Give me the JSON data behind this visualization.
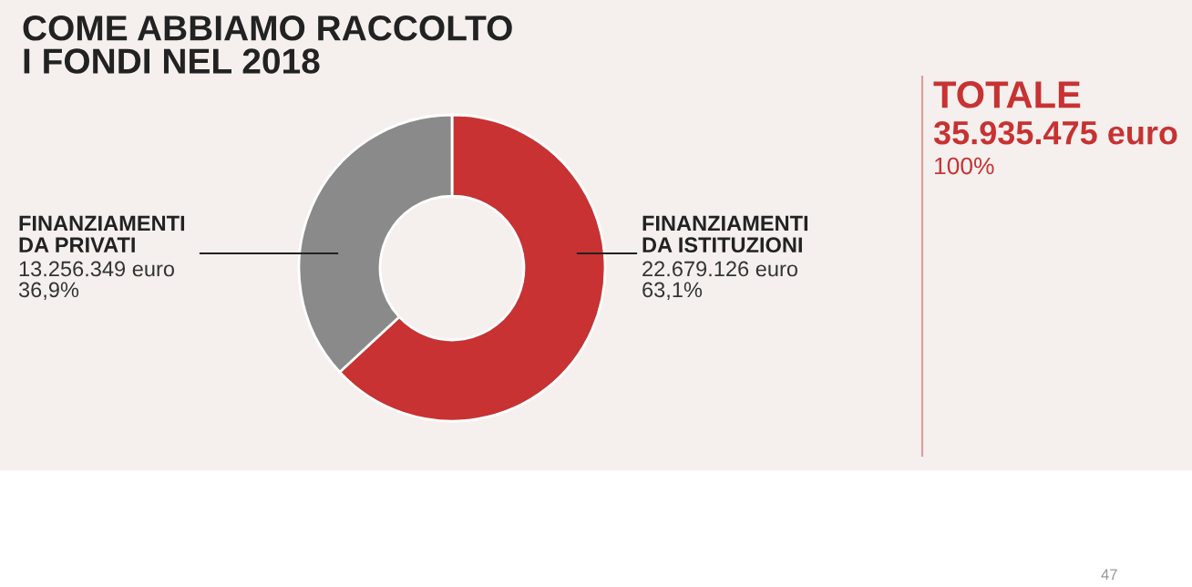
{
  "chart_data": {
    "type": "donut",
    "title": "COME ABBIAMO RACCOLTO\nI FONDI NEL 2018",
    "categories": [
      "FINANZIAMENTI\nDA ISTITUZIONI",
      "FINANZIAMENTI\nDA PRIVATI"
    ],
    "values": [
      22679126,
      13256349
    ],
    "colors": [
      "#c83232",
      "#8a8a8a"
    ],
    "value_labels": [
      "22.679.126 euro\n63,1%",
      "13.256.349 euro\n36,9%"
    ],
    "annotations": [
      "TOTALE",
      "35.935.475 euro",
      "100%",
      "47"
    ]
  }
}
